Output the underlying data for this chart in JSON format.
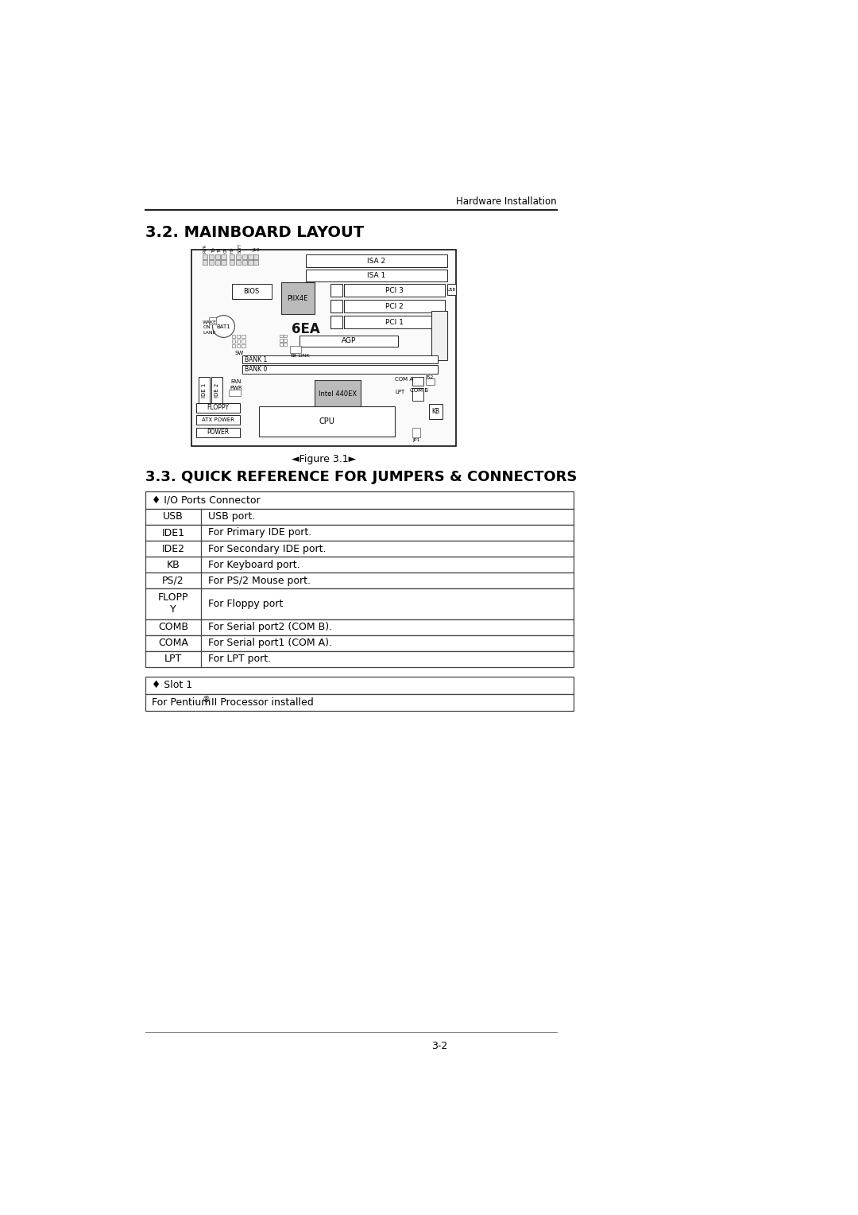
{
  "page_header": "Hardware Installation",
  "section1_title": "3.2. MAINBOARD LAYOUT",
  "board_label": "6EA",
  "figure_caption": "◄Figure 3.1►",
  "section2_title": "3.3. QUICK REFERENCE FOR JUMPERS & CONNECTORS",
  "table1_header": "♦ I/O Ports Connector",
  "table1_rows": [
    [
      "USB",
      "USB port."
    ],
    [
      "IDE1",
      "For Primary IDE port."
    ],
    [
      "IDE2",
      "For Secondary IDE port."
    ],
    [
      "KB",
      "For Keyboard port."
    ],
    [
      "PS/2",
      "For PS/2 Mouse port."
    ],
    [
      "FLOPP\nY",
      "For Floppy port"
    ],
    [
      "COMB",
      "For Serial port2 (COM B)."
    ],
    [
      "COMA",
      "For Serial port1 (COM A)."
    ],
    [
      "LPT",
      "For LPT port."
    ]
  ],
  "table2_header": "♦ Slot 1",
  "table2_row": "For Pentium® II Processor installed",
  "page_number": "3-2",
  "bg_color": "#ffffff",
  "text_color": "#000000"
}
